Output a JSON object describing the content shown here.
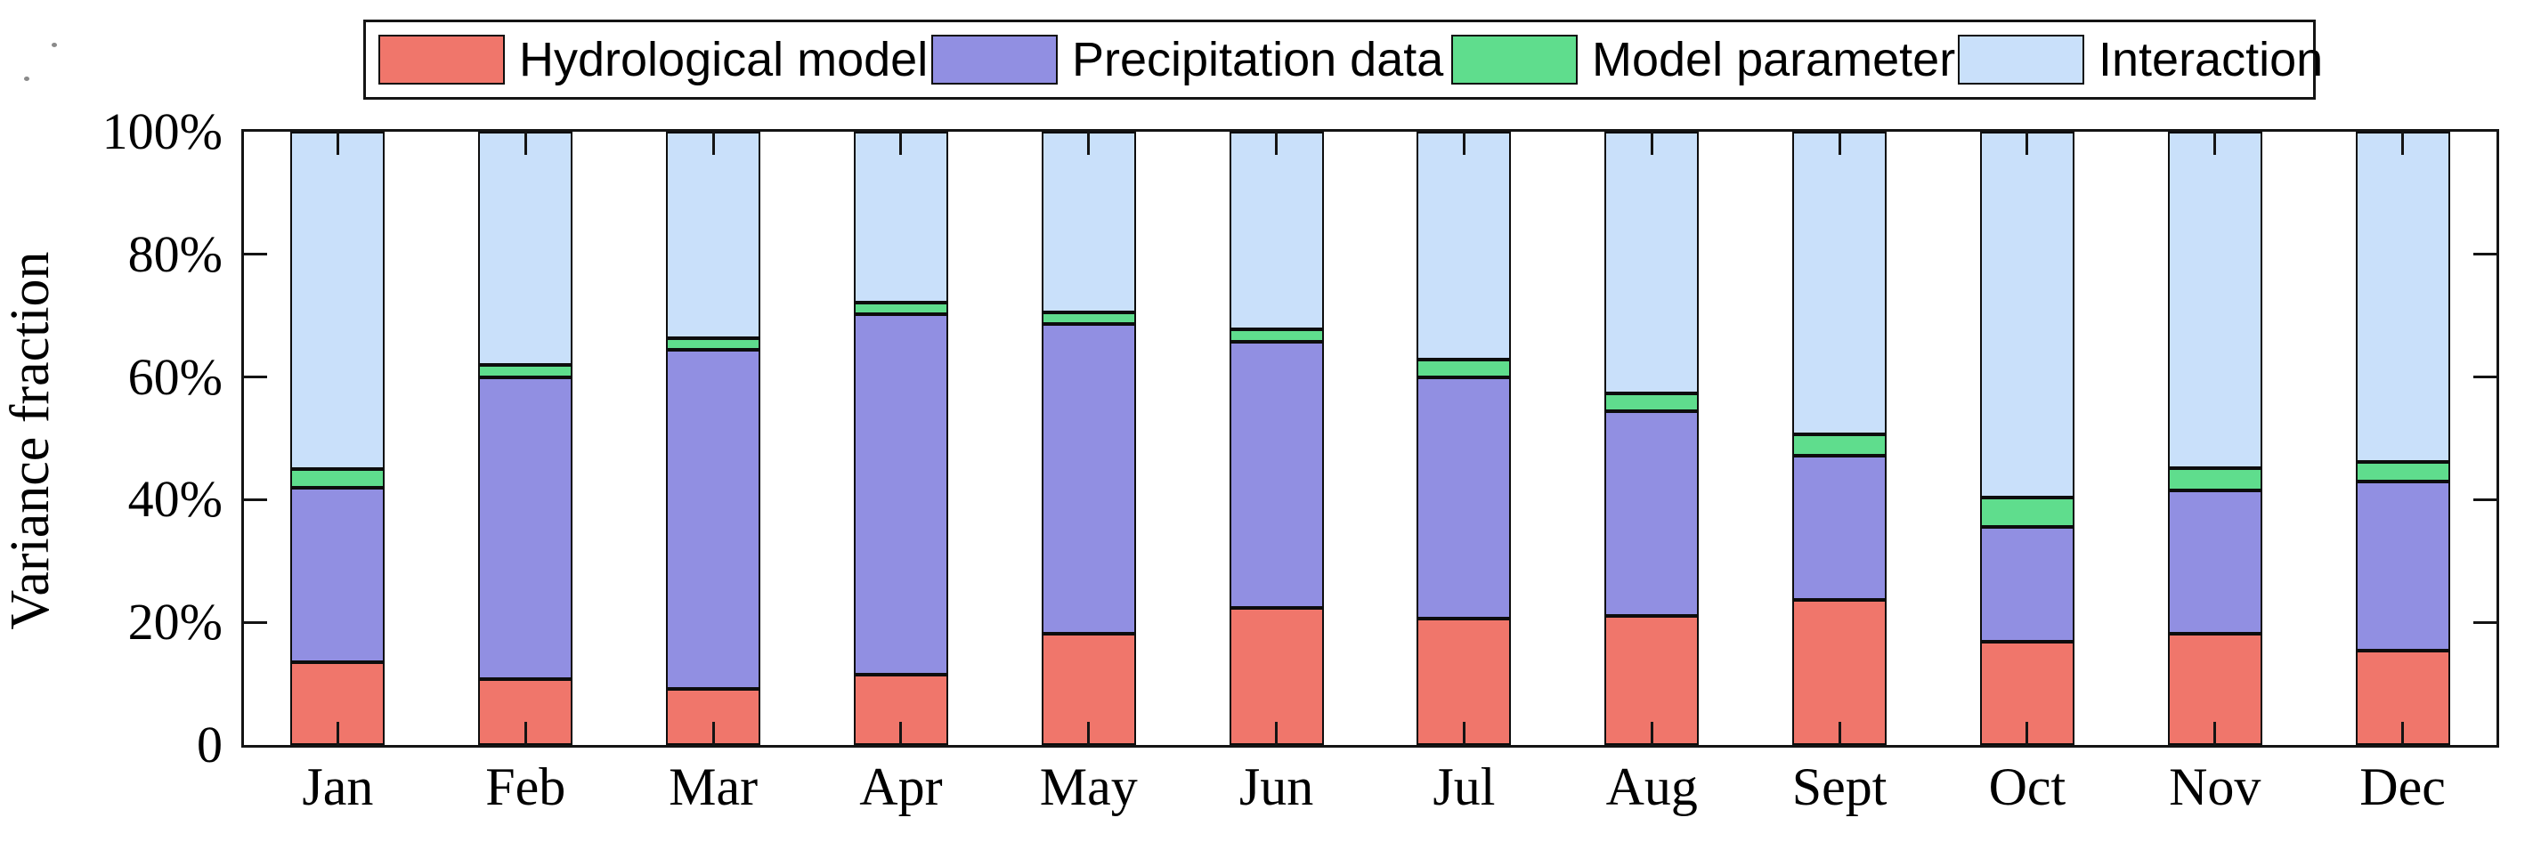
{
  "figure": {
    "y_axis_title": "Variance fraction",
    "ytick_labels": [
      "0",
      "20%",
      "40%",
      "60%",
      "80%",
      "100%"
    ],
    "ytick_values": [
      0,
      20,
      40,
      60,
      80,
      100
    ]
  },
  "chart_data": {
    "type": "bar",
    "stacked": true,
    "title": "",
    "xlabel": "",
    "ylabel": "Variance fraction",
    "ylim": [
      0,
      100
    ],
    "y_unit": "percent",
    "grid": false,
    "legend_position": "top",
    "categories": [
      "Jan",
      "Feb",
      "Mar",
      "Apr",
      "May",
      "Jun",
      "Jul",
      "Aug",
      "Sept",
      "Oct",
      "Nov",
      "Dec"
    ],
    "series": [
      {
        "name": "Hydrological model",
        "color": "#f0766b",
        "values": [
          13.5,
          10.7,
          9.2,
          11.5,
          18.2,
          22.4,
          20.6,
          21.0,
          23.6,
          16.8,
          18.2,
          15.4
        ]
      },
      {
        "name": "Precipitation data",
        "color": "#918fe2",
        "values": [
          28.5,
          49.3,
          55.3,
          58.7,
          50.4,
          43.3,
          39.4,
          33.5,
          23.6,
          18.8,
          23.3,
          27.5
        ]
      },
      {
        "name": "Model parameter",
        "color": "#5fdd8d",
        "values": [
          3.0,
          2.0,
          1.8,
          1.9,
          1.9,
          2.1,
          2.8,
          2.9,
          3.4,
          4.8,
          3.6,
          3.2
        ]
      },
      {
        "name": "Interaction",
        "color": "#c9e0fa",
        "values": [
          55.0,
          38.0,
          33.7,
          27.9,
          29.5,
          32.2,
          37.2,
          42.6,
          49.4,
          59.6,
          54.9,
          53.9
        ]
      }
    ]
  }
}
